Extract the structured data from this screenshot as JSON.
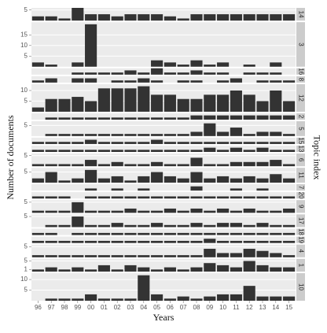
{
  "chart_data": {
    "type": "bar",
    "x_label": "Years",
    "y_label": "Number of documents",
    "facet_label": "Topic index",
    "color": "#333333",
    "grid": true,
    "categories": [
      "96",
      "97",
      "98",
      "99",
      "00",
      "01",
      "02",
      "03",
      "04",
      "05",
      "06",
      "07",
      "08",
      "09",
      "10",
      "11",
      "12",
      "13",
      "14",
      "15"
    ],
    "panels": [
      {
        "label": "14",
        "ylim": [
          0,
          6
        ],
        "yticks": [
          5
        ],
        "values": [
          2,
          2,
          1,
          6,
          3,
          3,
          2,
          3,
          3,
          3,
          2,
          1,
          3,
          3,
          3,
          3,
          3,
          3,
          3,
          3
        ]
      },
      {
        "label": "3",
        "ylim": [
          0,
          21
        ],
        "yticks": [
          5,
          10,
          15
        ],
        "values": [
          2,
          1,
          0,
          2,
          20,
          0,
          0,
          0,
          0,
          3,
          2,
          1,
          3,
          1,
          2,
          0,
          1,
          0,
          2,
          0
        ]
      },
      {
        "label": "16",
        "ylim": [
          0,
          3
        ],
        "values": [
          0,
          0,
          0,
          1,
          1,
          1,
          1,
          2,
          1,
          3,
          1,
          1,
          2,
          1,
          1,
          0,
          1,
          1,
          1,
          0
        ]
      },
      {
        "label": "8",
        "ylim": [
          0,
          3
        ],
        "values": [
          1,
          2,
          0,
          2,
          2,
          0,
          1,
          1,
          2,
          1,
          0,
          1,
          1,
          0,
          1,
          2,
          0,
          1,
          1,
          1
        ]
      },
      {
        "label": "12",
        "ylim": [
          0,
          13
        ],
        "yticks": [
          5,
          10
        ],
        "values": [
          2,
          6,
          6,
          7,
          5,
          11,
          11,
          11,
          12,
          8,
          8,
          6,
          6,
          8,
          8,
          10,
          8,
          5,
          10,
          5
        ]
      },
      {
        "label": "2",
        "ylim": [
          0,
          3
        ],
        "values": [
          0,
          1,
          1,
          1,
          1,
          1,
          1,
          1,
          1,
          1,
          1,
          1,
          2,
          2,
          2,
          2,
          2,
          2,
          2,
          2
        ]
      },
      {
        "label": "5",
        "ylim": [
          0,
          7
        ],
        "yticks": [
          5
        ],
        "values": [
          0,
          1,
          1,
          1,
          1,
          1,
          1,
          1,
          1,
          1,
          1,
          1,
          2,
          6,
          2,
          4,
          1,
          2,
          2,
          1
        ]
      },
      {
        "label": "15",
        "ylim": [
          0,
          3
        ],
        "values": [
          1,
          1,
          1,
          1,
          2,
          1,
          1,
          1,
          1,
          2,
          1,
          1,
          1,
          1,
          1,
          1,
          1,
          1,
          1,
          1
        ]
      },
      {
        "label": "13",
        "ylim": [
          0,
          3
        ],
        "values": [
          1,
          1,
          1,
          1,
          1,
          1,
          1,
          1,
          1,
          1,
          1,
          1,
          1,
          2,
          1,
          2,
          1,
          2,
          1,
          1
        ]
      },
      {
        "label": "6",
        "ylim": [
          0,
          6
        ],
        "yticks": [
          5
        ],
        "values": [
          1,
          1,
          1,
          1,
          3,
          1,
          2,
          1,
          1,
          2,
          1,
          1,
          4,
          1,
          1,
          2,
          2,
          2,
          3,
          1
        ]
      },
      {
        "label": "11",
        "ylim": [
          0,
          7
        ],
        "yticks": [
          5
        ],
        "values": [
          2,
          5,
          1,
          2,
          6,
          2,
          3,
          1,
          3,
          5,
          3,
          2,
          5,
          2,
          3,
          2,
          3,
          2,
          4,
          2
        ]
      },
      {
        "label": "7",
        "ylim": [
          0,
          3
        ],
        "values": [
          0,
          0,
          0,
          0,
          1,
          0,
          1,
          0,
          1,
          0,
          0,
          0,
          2,
          0,
          0,
          1,
          0,
          1,
          0,
          0
        ]
      },
      {
        "label": "20",
        "ylim": [
          0,
          3
        ],
        "values": [
          1,
          1,
          1,
          0,
          1,
          1,
          1,
          1,
          1,
          1,
          1,
          1,
          1,
          1,
          1,
          1,
          1,
          1,
          1,
          1
        ]
      },
      {
        "label": "9",
        "ylim": [
          0,
          6
        ],
        "yticks": [
          5
        ],
        "values": [
          1,
          1,
          1,
          5,
          1,
          1,
          1,
          2,
          1,
          1,
          2,
          1,
          2,
          1,
          2,
          1,
          2,
          1,
          1,
          2
        ]
      },
      {
        "label": "17",
        "ylim": [
          0,
          6
        ],
        "yticks": [
          5
        ],
        "values": [
          0,
          1,
          1,
          5,
          1,
          1,
          2,
          1,
          1,
          2,
          1,
          1,
          2,
          1,
          2,
          2,
          1,
          2,
          1,
          1
        ]
      },
      {
        "label": "18",
        "ylim": [
          0,
          3
        ],
        "values": [
          1,
          1,
          0,
          1,
          1,
          1,
          1,
          1,
          1,
          1,
          1,
          1,
          1,
          1,
          1,
          1,
          1,
          1,
          1,
          1
        ]
      },
      {
        "label": "19",
        "ylim": [
          0,
          3
        ],
        "values": [
          1,
          1,
          1,
          1,
          1,
          1,
          1,
          1,
          1,
          1,
          1,
          1,
          1,
          2,
          1,
          1,
          1,
          1,
          1,
          1
        ]
      },
      {
        "label": "4",
        "ylim": [
          0,
          6
        ],
        "yticks": [
          5
        ],
        "values": [
          1,
          1,
          1,
          1,
          1,
          1,
          1,
          1,
          1,
          1,
          1,
          1,
          1,
          4,
          2,
          2,
          4,
          3,
          2,
          1
        ]
      },
      {
        "label": "1",
        "ylim": [
          0,
          6
        ],
        "yticks": [
          1,
          5
        ],
        "values": [
          1,
          2,
          1,
          2,
          1,
          3,
          1,
          3,
          2,
          1,
          2,
          1,
          2,
          4,
          3,
          2,
          5,
          3,
          2,
          2
        ]
      },
      {
        "label": "10",
        "ylim": [
          0,
          13
        ],
        "yticks": [
          5,
          10
        ],
        "values": [
          0,
          1,
          1,
          1,
          3,
          1,
          1,
          1,
          12,
          3,
          1,
          2,
          1,
          2,
          3,
          3,
          7,
          2,
          2,
          2
        ]
      }
    ]
  }
}
